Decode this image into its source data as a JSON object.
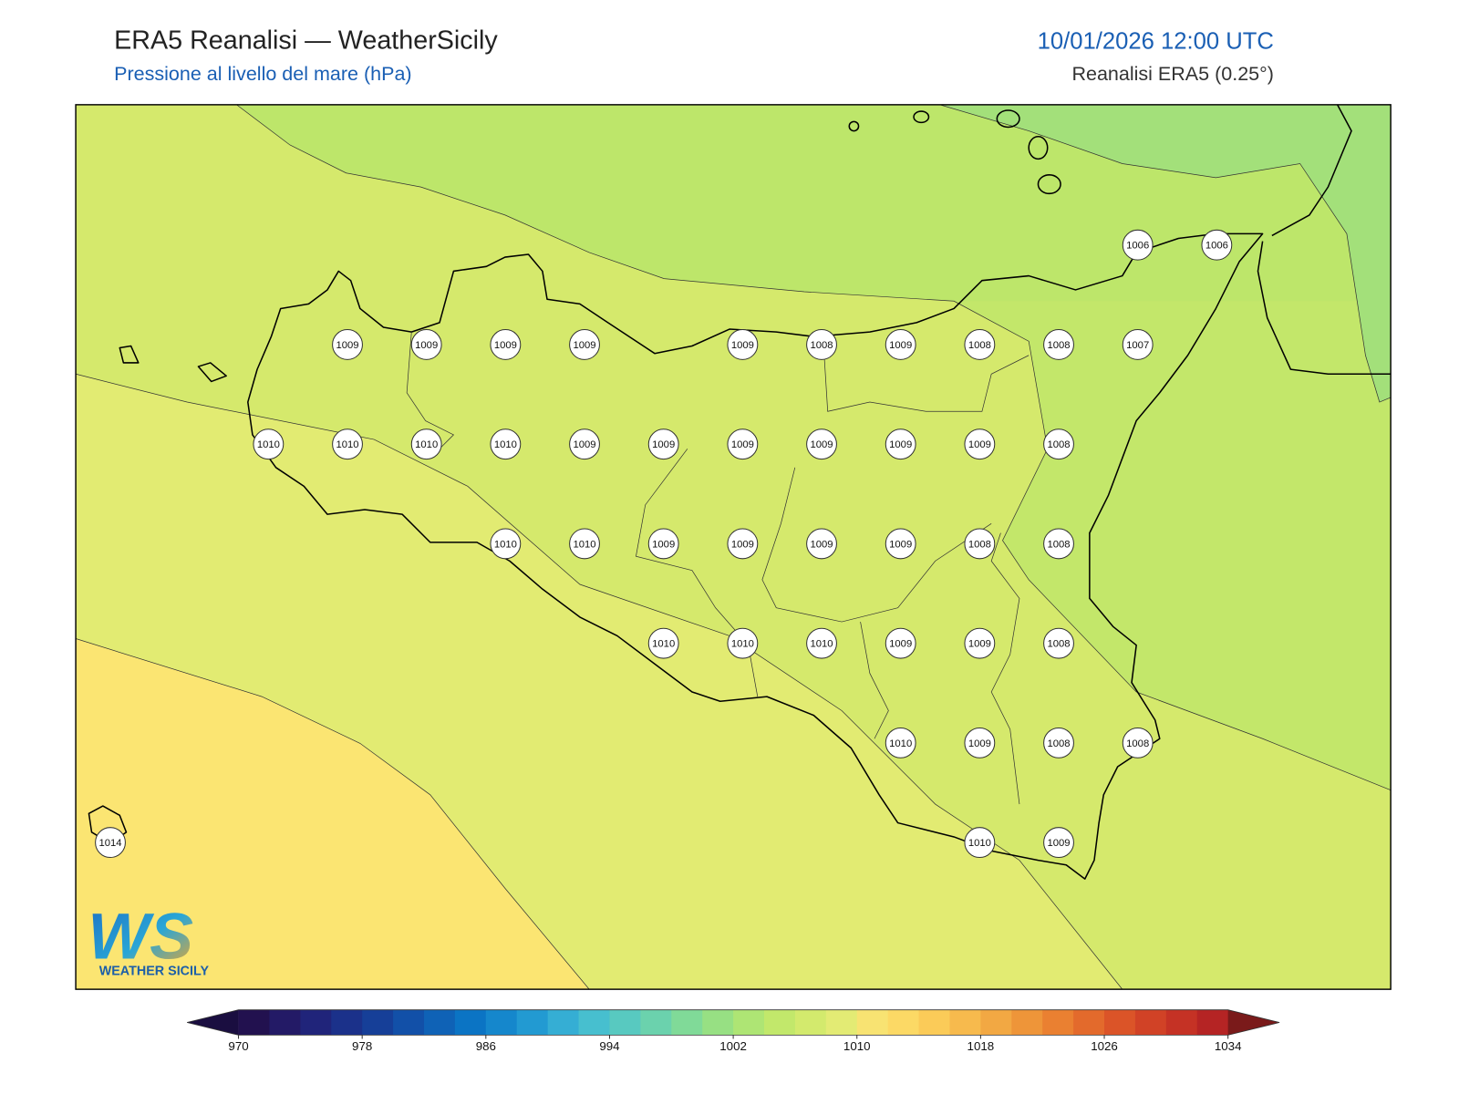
{
  "header": {
    "title": "ERA5 Reanalisi — WeatherSicily",
    "subtitle": "Pressione al livello del mare (hPa)",
    "datetime": "10/01/2026 12:00 UTC",
    "source": "Reanalisi ERA5 (0.25°)"
  },
  "stations": [
    1006,
    1006,
    1009,
    1009,
    1009,
    1009,
    1009,
    1008,
    1009,
    1008,
    1008,
    1007,
    1010,
    1010,
    1010,
    1010,
    1009,
    1009,
    1009,
    1009,
    1009,
    1009,
    1008,
    1010,
    1010,
    1009,
    1009,
    1009,
    1009,
    1008,
    1008,
    1010,
    1010,
    1010,
    1009,
    1009,
    1008,
    1010,
    1009,
    1008,
    1008,
    1014,
    1010,
    1009
  ],
  "colorbar": {
    "range": [
      970,
      1034
    ],
    "ticks": [
      970,
      978,
      986,
      994,
      1002,
      1010,
      1018,
      1026,
      1034
    ],
    "under_color": "#1a0e40",
    "over_color": "#7a1a1a",
    "colors": [
      "#22114f",
      "#231a66",
      "#20247a",
      "#1b318a",
      "#163f98",
      "#1250a8",
      "#0f62b6",
      "#0b74c4",
      "#1587cc",
      "#229ad2",
      "#35aed4",
      "#47bfcf",
      "#58c9c0",
      "#6bd2ad",
      "#80da98",
      "#97e083",
      "#aee574",
      "#c2e86b",
      "#d3ea6d",
      "#e3eb74",
      "#f8e372",
      "#fcd965",
      "#fbcb58",
      "#f7ba4d",
      "#f2a843",
      "#ee9539",
      "#ea8031",
      "#e36a2c",
      "#db5428",
      "#d14226",
      "#c53225",
      "#b52424"
    ]
  },
  "logo": {
    "mark": "WS",
    "name": "WEATHER SICILY"
  }
}
